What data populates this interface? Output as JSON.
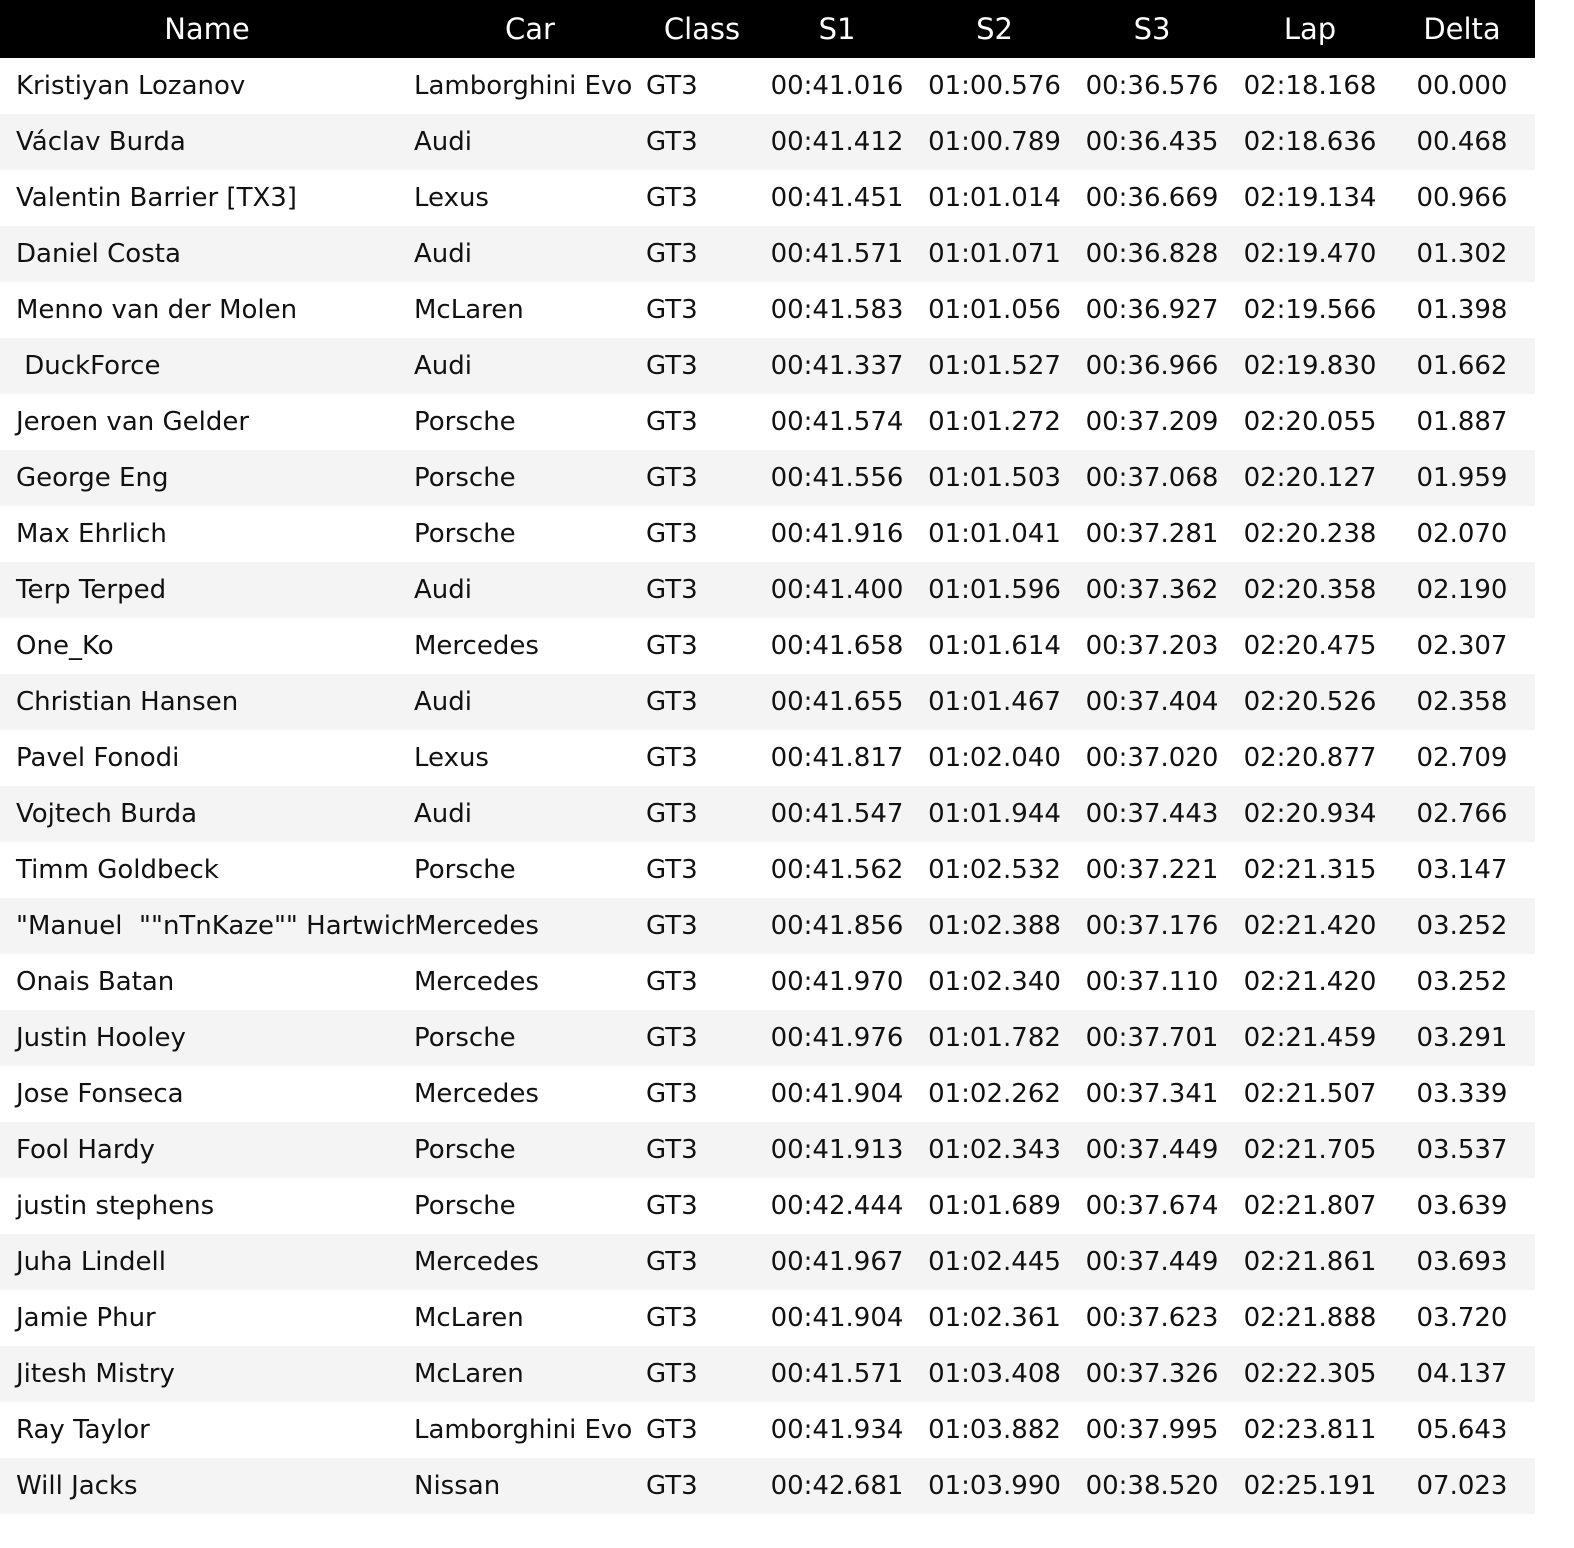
{
  "table": {
    "headers": {
      "name": "Name",
      "car": "Car",
      "class": "Class",
      "s1": "S1",
      "s2": "S2",
      "s3": "S3",
      "lap": "Lap",
      "delta": "Delta"
    },
    "rows": [
      {
        "name": "Kristiyan Lozanov",
        "car": "Lamborghini Evo",
        "class": "GT3",
        "s1": "00:41.016",
        "s2": "01:00.576",
        "s3": "00:36.576",
        "lap": "02:18.168",
        "delta": "00.000"
      },
      {
        "name": "Václav Burda",
        "car": "Audi",
        "class": "GT3",
        "s1": "00:41.412",
        "s2": "01:00.789",
        "s3": "00:36.435",
        "lap": "02:18.636",
        "delta": "00.468"
      },
      {
        "name": "Valentin Barrier [TX3]",
        "car": "Lexus",
        "class": "GT3",
        "s1": "00:41.451",
        "s2": "01:01.014",
        "s3": "00:36.669",
        "lap": "02:19.134",
        "delta": "00.966"
      },
      {
        "name": "Daniel Costa",
        "car": "Audi",
        "class": "GT3",
        "s1": "00:41.571",
        "s2": "01:01.071",
        "s3": "00:36.828",
        "lap": "02:19.470",
        "delta": "01.302"
      },
      {
        "name": "Menno van der Molen",
        "car": "McLaren",
        "class": "GT3",
        "s1": "00:41.583",
        "s2": "01:01.056",
        "s3": "00:36.927",
        "lap": "02:19.566",
        "delta": "01.398"
      },
      {
        "name": " DuckForce",
        "car": "Audi",
        "class": "GT3",
        "s1": "00:41.337",
        "s2": "01:01.527",
        "s3": "00:36.966",
        "lap": "02:19.830",
        "delta": "01.662"
      },
      {
        "name": "Jeroen van Gelder",
        "car": "Porsche",
        "class": "GT3",
        "s1": "00:41.574",
        "s2": "01:01.272",
        "s3": "00:37.209",
        "lap": "02:20.055",
        "delta": "01.887"
      },
      {
        "name": "George Eng",
        "car": "Porsche",
        "class": "GT3",
        "s1": "00:41.556",
        "s2": "01:01.503",
        "s3": "00:37.068",
        "lap": "02:20.127",
        "delta": "01.959"
      },
      {
        "name": "Max Ehrlich",
        "car": "Porsche",
        "class": "GT3",
        "s1": "00:41.916",
        "s2": "01:01.041",
        "s3": "00:37.281",
        "lap": "02:20.238",
        "delta": "02.070"
      },
      {
        "name": "Terp Terped",
        "car": "Audi",
        "class": "GT3",
        "s1": "00:41.400",
        "s2": "01:01.596",
        "s3": "00:37.362",
        "lap": "02:20.358",
        "delta": "02.190"
      },
      {
        "name": "One_Ko",
        "car": "Mercedes",
        "class": "GT3",
        "s1": "00:41.658",
        "s2": "01:01.614",
        "s3": "00:37.203",
        "lap": "02:20.475",
        "delta": "02.307"
      },
      {
        "name": "Christian Hansen",
        "car": "Audi",
        "class": "GT3",
        "s1": "00:41.655",
        "s2": "01:01.467",
        "s3": "00:37.404",
        "lap": "02:20.526",
        "delta": "02.358"
      },
      {
        "name": "Pavel Fonodi",
        "car": "Lexus",
        "class": "GT3",
        "s1": "00:41.817",
        "s2": "01:02.040",
        "s3": "00:37.020",
        "lap": "02:20.877",
        "delta": "02.709"
      },
      {
        "name": "Vojtech Burda",
        "car": "Audi",
        "class": "GT3",
        "s1": "00:41.547",
        "s2": "01:01.944",
        "s3": "00:37.443",
        "lap": "02:20.934",
        "delta": "02.766"
      },
      {
        "name": "Timm Goldbeck",
        "car": "Porsche",
        "class": "GT3",
        "s1": "00:41.562",
        "s2": "01:02.532",
        "s3": "00:37.221",
        "lap": "02:21.315",
        "delta": "03.147"
      },
      {
        "name": "\"Manuel  \"\"nTnKaze\"\" Hartwich\"",
        "car": "Mercedes",
        "class": "GT3",
        "s1": "00:41.856",
        "s2": "01:02.388",
        "s3": "00:37.176",
        "lap": "02:21.420",
        "delta": "03.252"
      },
      {
        "name": "Onais Batan",
        "car": "Mercedes",
        "class": "GT3",
        "s1": "00:41.970",
        "s2": "01:02.340",
        "s3": "00:37.110",
        "lap": "02:21.420",
        "delta": "03.252"
      },
      {
        "name": "Justin Hooley",
        "car": "Porsche",
        "class": "GT3",
        "s1": "00:41.976",
        "s2": "01:01.782",
        "s3": "00:37.701",
        "lap": "02:21.459",
        "delta": "03.291"
      },
      {
        "name": "Jose Fonseca",
        "car": "Mercedes",
        "class": "GT3",
        "s1": "00:41.904",
        "s2": "01:02.262",
        "s3": "00:37.341",
        "lap": "02:21.507",
        "delta": "03.339"
      },
      {
        "name": "Fool Hardy",
        "car": "Porsche",
        "class": "GT3",
        "s1": "00:41.913",
        "s2": "01:02.343",
        "s3": "00:37.449",
        "lap": "02:21.705",
        "delta": "03.537"
      },
      {
        "name": "justin stephens",
        "car": "Porsche",
        "class": "GT3",
        "s1": "00:42.444",
        "s2": "01:01.689",
        "s3": "00:37.674",
        "lap": "02:21.807",
        "delta": "03.639"
      },
      {
        "name": "Juha Lindell",
        "car": "Mercedes",
        "class": "GT3",
        "s1": "00:41.967",
        "s2": "01:02.445",
        "s3": "00:37.449",
        "lap": "02:21.861",
        "delta": "03.693"
      },
      {
        "name": "Jamie Phur",
        "car": "McLaren",
        "class": "GT3",
        "s1": "00:41.904",
        "s2": "01:02.361",
        "s3": "00:37.623",
        "lap": "02:21.888",
        "delta": "03.720"
      },
      {
        "name": "Jitesh Mistry",
        "car": "McLaren",
        "class": "GT3",
        "s1": "00:41.571",
        "s2": "01:03.408",
        "s3": "00:37.326",
        "lap": "02:22.305",
        "delta": "04.137"
      },
      {
        "name": "Ray Taylor",
        "car": "Lamborghini Evo",
        "class": "GT3",
        "s1": "00:41.934",
        "s2": "01:03.882",
        "s3": "00:37.995",
        "lap": "02:23.811",
        "delta": "05.643"
      },
      {
        "name": "Will Jacks",
        "car": "Nissan",
        "class": "GT3",
        "s1": "00:42.681",
        "s2": "01:03.990",
        "s3": "00:38.520",
        "lap": "02:25.191",
        "delta": "07.023"
      }
    ]
  }
}
